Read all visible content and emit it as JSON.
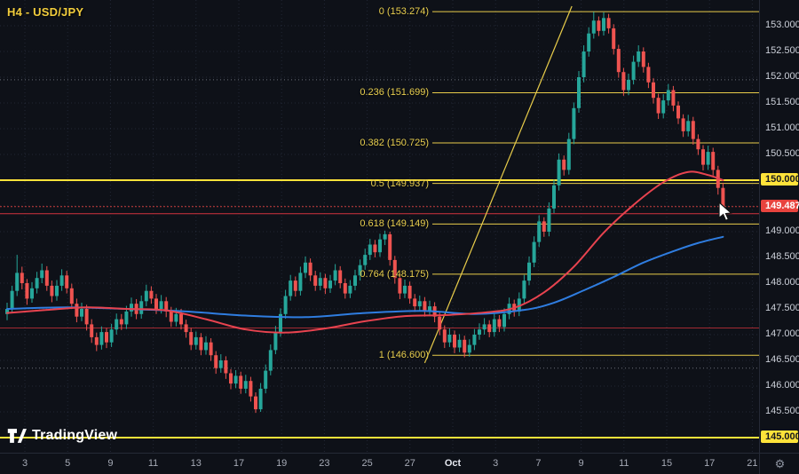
{
  "header": {
    "title": "H4 - USD/JPY"
  },
  "watermark": {
    "label": "TradingView"
  },
  "icons": {
    "settings": "⚙"
  },
  "chart_data": {
    "type": "candlestick",
    "symbol": "USD/JPY",
    "timeframe": "H4",
    "ylim": [
      144.71,
      153.5
    ],
    "grid_step": 0.5,
    "legend_position": "none",
    "colors": {
      "up": "#26a69a",
      "down": "#ef5350",
      "fib": "#e8cc4a",
      "level": "#ffe33a",
      "ma_red": "#e8434f",
      "ma_blue": "#2f7de0",
      "last": "#e8433e"
    },
    "x_labels": [
      {
        "text": "3"
      },
      {
        "text": "5"
      },
      {
        "text": "9"
      },
      {
        "text": "11"
      },
      {
        "text": "13"
      },
      {
        "text": "17"
      },
      {
        "text": "19"
      },
      {
        "text": "23"
      },
      {
        "text": "25"
      },
      {
        "text": "27"
      },
      {
        "text": "Oct",
        "bold": true
      },
      {
        "text": "3"
      },
      {
        "text": "7"
      },
      {
        "text": "9"
      },
      {
        "text": "11"
      },
      {
        "text": "15"
      },
      {
        "text": "17"
      },
      {
        "text": "21"
      }
    ],
    "y_labels": [
      {
        "text": "153.000",
        "price": 153.0
      },
      {
        "text": "152.500",
        "price": 152.5
      },
      {
        "text": "152.000",
        "price": 152.0
      },
      {
        "text": "151.500",
        "price": 151.5
      },
      {
        "text": "151.000",
        "price": 151.0
      },
      {
        "text": "150.500",
        "price": 150.5
      },
      {
        "text": "149.000",
        "price": 149.0
      },
      {
        "text": "148.500",
        "price": 148.5
      },
      {
        "text": "148.000",
        "price": 148.0
      },
      {
        "text": "147.500",
        "price": 147.5
      },
      {
        "text": "147.000",
        "price": 147.0
      },
      {
        "text": "146.500",
        "price": 146.5
      },
      {
        "text": "146.000",
        "price": 146.0
      },
      {
        "text": "145.500",
        "price": 145.5
      }
    ],
    "fib": {
      "levels": [
        {
          "label": "0 (153.274)",
          "price": 153.274
        },
        {
          "label": "0.236 (151.699)",
          "price": 151.699
        },
        {
          "label": "0.382 (150.725)",
          "price": 150.725
        },
        {
          "label": "0.5 (149.937)",
          "price": 149.937
        },
        {
          "label": "0.618 (149.149)",
          "price": 149.149
        },
        {
          "label": "0.764 (148.175)",
          "price": 148.175
        },
        {
          "label": "1 (146.600)",
          "price": 146.6
        }
      ]
    },
    "price_levels": [
      {
        "label": "150.000",
        "price": 150.0
      },
      {
        "label": "145.000",
        "price": 145.0
      }
    ],
    "support_lines": [
      {
        "price": 149.35,
        "color": "#d2323e"
      },
      {
        "price": 147.13,
        "color": "#a32a33"
      }
    ],
    "dotted_lines": [
      {
        "price": 151.95
      },
      {
        "price": 146.35
      }
    ],
    "last_price": {
      "label": "149.487",
      "price": 149.487
    },
    "trendline": {
      "from_index": 84,
      "from_price": 146.45,
      "to_index": 113.6,
      "to_price": 153.38
    },
    "ma_red": {
      "points": [
        [
          0,
          147.42
        ],
        [
          8,
          147.48
        ],
        [
          16,
          147.53
        ],
        [
          24,
          147.5
        ],
        [
          32,
          147.47
        ],
        [
          40,
          147.3
        ],
        [
          48,
          147.1
        ],
        [
          56,
          147.04
        ],
        [
          64,
          147.12
        ],
        [
          72,
          147.26
        ],
        [
          80,
          147.36
        ],
        [
          88,
          147.38
        ],
        [
          96,
          147.43
        ],
        [
          102,
          147.52
        ],
        [
          108,
          147.82
        ],
        [
          114,
          148.32
        ],
        [
          120,
          148.98
        ],
        [
          126,
          149.52
        ],
        [
          132,
          149.96
        ],
        [
          137,
          150.16
        ],
        [
          141,
          150.1
        ],
        [
          144,
          150.0
        ]
      ]
    },
    "ma_blue": {
      "points": [
        [
          0,
          147.5
        ],
        [
          12,
          147.53
        ],
        [
          24,
          147.5
        ],
        [
          36,
          147.45
        ],
        [
          48,
          147.37
        ],
        [
          60,
          147.34
        ],
        [
          72,
          147.42
        ],
        [
          84,
          147.46
        ],
        [
          94,
          147.4
        ],
        [
          104,
          147.48
        ],
        [
          110,
          147.62
        ],
        [
          116,
          147.86
        ],
        [
          122,
          148.12
        ],
        [
          128,
          148.4
        ],
        [
          134,
          148.62
        ],
        [
          139,
          148.78
        ],
        [
          144,
          148.9
        ]
      ]
    },
    "candles": [
      [
        147.4,
        147.62,
        147.28,
        147.5
      ],
      [
        147.5,
        147.95,
        147.42,
        147.85
      ],
      [
        147.85,
        148.55,
        147.75,
        148.2
      ],
      [
        148.2,
        148.32,
        147.88,
        148.0
      ],
      [
        148.0,
        148.08,
        147.58,
        147.7
      ],
      [
        147.7,
        148.02,
        147.62,
        147.9
      ],
      [
        147.9,
        148.22,
        147.8,
        148.1
      ],
      [
        148.1,
        148.38,
        148.0,
        148.25
      ],
      [
        148.25,
        148.33,
        147.85,
        147.95
      ],
      [
        147.95,
        148.05,
        147.63,
        147.75
      ],
      [
        147.75,
        148.06,
        147.66,
        147.95
      ],
      [
        147.95,
        148.27,
        147.85,
        148.15
      ],
      [
        148.15,
        148.24,
        147.8,
        147.9
      ],
      [
        147.9,
        147.99,
        147.5,
        147.6
      ],
      [
        147.6,
        147.7,
        147.24,
        147.35
      ],
      [
        147.35,
        147.62,
        147.26,
        147.5
      ],
      [
        147.5,
        147.58,
        147.08,
        147.2
      ],
      [
        147.2,
        147.3,
        146.84,
        146.95
      ],
      [
        146.95,
        147.04,
        146.68,
        146.8
      ],
      [
        146.8,
        147.16,
        146.71,
        147.05
      ],
      [
        147.05,
        147.13,
        146.74,
        146.85
      ],
      [
        146.85,
        147.21,
        146.76,
        147.1
      ],
      [
        147.1,
        147.41,
        147.0,
        147.3
      ],
      [
        147.3,
        147.4,
        147.09,
        147.2
      ],
      [
        147.2,
        147.56,
        147.11,
        147.45
      ],
      [
        147.45,
        147.72,
        147.35,
        147.6
      ],
      [
        147.6,
        147.69,
        147.3,
        147.4
      ],
      [
        147.4,
        147.76,
        147.31,
        147.65
      ],
      [
        147.65,
        147.97,
        147.55,
        147.85
      ],
      [
        147.85,
        147.94,
        147.6,
        147.7
      ],
      [
        147.7,
        147.79,
        147.4,
        147.5
      ],
      [
        147.5,
        147.77,
        147.41,
        147.65
      ],
      [
        147.65,
        147.73,
        147.34,
        147.45
      ],
      [
        147.45,
        147.54,
        147.15,
        147.25
      ],
      [
        147.25,
        147.52,
        147.16,
        147.4
      ],
      [
        147.4,
        147.5,
        147.1,
        147.2
      ],
      [
        147.2,
        147.29,
        146.94,
        147.05
      ],
      [
        147.05,
        147.13,
        146.7,
        146.8
      ],
      [
        146.8,
        147.06,
        146.71,
        146.95
      ],
      [
        146.95,
        147.03,
        146.6,
        146.7
      ],
      [
        146.7,
        146.97,
        146.61,
        146.85
      ],
      [
        146.85,
        146.93,
        146.49,
        146.6
      ],
      [
        146.6,
        146.68,
        146.24,
        146.35
      ],
      [
        146.35,
        146.62,
        146.26,
        146.5
      ],
      [
        146.5,
        146.58,
        146.14,
        146.25
      ],
      [
        146.25,
        146.33,
        145.94,
        146.05
      ],
      [
        146.05,
        146.31,
        145.96,
        146.2
      ],
      [
        146.2,
        146.28,
        145.85,
        145.95
      ],
      [
        145.95,
        146.22,
        145.86,
        146.1
      ],
      [
        146.1,
        146.18,
        145.7,
        145.8
      ],
      [
        145.8,
        145.88,
        145.48,
        145.55
      ],
      [
        145.55,
        146.06,
        145.5,
        145.95
      ],
      [
        145.95,
        146.42,
        145.86,
        146.3
      ],
      [
        146.3,
        146.81,
        146.21,
        146.7
      ],
      [
        146.7,
        147.17,
        146.62,
        147.05
      ],
      [
        147.05,
        147.51,
        146.96,
        147.4
      ],
      [
        147.4,
        147.87,
        147.31,
        147.75
      ],
      [
        147.75,
        148.16,
        147.66,
        148.05
      ],
      [
        148.05,
        148.13,
        147.74,
        147.85
      ],
      [
        147.85,
        148.32,
        147.76,
        148.2
      ],
      [
        148.2,
        148.52,
        148.1,
        148.4
      ],
      [
        148.4,
        148.48,
        148.04,
        148.15
      ],
      [
        148.15,
        148.24,
        147.85,
        147.95
      ],
      [
        147.95,
        148.21,
        147.86,
        148.1
      ],
      [
        148.1,
        148.18,
        147.79,
        147.9
      ],
      [
        147.9,
        148.16,
        147.81,
        148.05
      ],
      [
        148.05,
        148.37,
        147.96,
        148.25
      ],
      [
        148.25,
        148.33,
        147.9,
        148.0
      ],
      [
        148.0,
        148.09,
        147.7,
        147.8
      ],
      [
        147.8,
        148.06,
        147.71,
        147.95
      ],
      [
        147.95,
        148.26,
        147.86,
        148.15
      ],
      [
        148.15,
        148.46,
        148.05,
        148.35
      ],
      [
        148.35,
        148.67,
        148.26,
        148.55
      ],
      [
        148.55,
        148.86,
        148.45,
        148.75
      ],
      [
        148.75,
        148.84,
        148.5,
        148.6
      ],
      [
        148.6,
        148.96,
        148.51,
        148.85
      ],
      [
        148.85,
        149.02,
        148.74,
        148.95
      ],
      [
        148.95,
        149.0,
        148.34,
        148.45
      ],
      [
        148.45,
        148.53,
        147.99,
        148.1
      ],
      [
        148.1,
        148.18,
        147.69,
        147.8
      ],
      [
        147.8,
        148.07,
        147.71,
        147.95
      ],
      [
        147.95,
        148.03,
        147.6,
        147.7
      ],
      [
        147.7,
        147.79,
        147.44,
        147.55
      ],
      [
        147.55,
        147.76,
        147.45,
        147.65
      ],
      [
        147.65,
        147.73,
        147.35,
        147.45
      ],
      [
        147.45,
        147.66,
        147.36,
        147.55
      ],
      [
        147.55,
        147.63,
        147.24,
        147.35
      ],
      [
        147.35,
        147.43,
        146.99,
        147.1
      ],
      [
        147.1,
        147.18,
        146.74,
        146.85
      ],
      [
        146.85,
        147.12,
        146.76,
        147.0
      ],
      [
        147.0,
        147.08,
        146.64,
        146.75
      ],
      [
        146.75,
        147.01,
        146.66,
        146.9
      ],
      [
        146.9,
        146.98,
        146.56,
        146.65
      ],
      [
        146.65,
        146.91,
        146.57,
        146.8
      ],
      [
        146.8,
        147.11,
        146.7,
        147.0
      ],
      [
        147.0,
        147.22,
        146.9,
        147.1
      ],
      [
        147.1,
        147.32,
        147.0,
        147.2
      ],
      [
        147.2,
        147.28,
        146.95,
        147.05
      ],
      [
        147.05,
        147.41,
        146.96,
        147.3
      ],
      [
        147.3,
        147.38,
        147.05,
        147.15
      ],
      [
        147.15,
        147.51,
        147.06,
        147.4
      ],
      [
        147.4,
        147.72,
        147.3,
        147.6
      ],
      [
        147.6,
        147.68,
        147.35,
        147.45
      ],
      [
        147.45,
        147.82,
        147.36,
        147.7
      ],
      [
        147.7,
        148.16,
        147.61,
        148.05
      ],
      [
        148.05,
        148.52,
        147.96,
        148.4
      ],
      [
        148.4,
        148.91,
        148.31,
        148.8
      ],
      [
        148.8,
        149.32,
        148.7,
        149.2
      ],
      [
        149.2,
        149.28,
        148.9,
        149.0
      ],
      [
        149.0,
        149.57,
        148.91,
        149.45
      ],
      [
        149.45,
        150.01,
        149.36,
        149.9
      ],
      [
        149.9,
        150.52,
        149.8,
        150.4
      ],
      [
        150.4,
        150.48,
        150.09,
        150.2
      ],
      [
        150.2,
        150.92,
        150.11,
        150.8
      ],
      [
        150.8,
        151.51,
        150.7,
        151.4
      ],
      [
        151.4,
        152.12,
        151.31,
        152.0
      ],
      [
        152.0,
        152.62,
        151.9,
        152.5
      ],
      [
        152.5,
        152.97,
        152.4,
        152.85
      ],
      [
        152.85,
        153.27,
        152.75,
        153.1
      ],
      [
        153.1,
        153.18,
        152.8,
        152.9
      ],
      [
        152.9,
        153.26,
        152.81,
        153.15
      ],
      [
        153.15,
        153.23,
        152.85,
        152.95
      ],
      [
        152.95,
        153.03,
        152.44,
        152.55
      ],
      [
        152.55,
        152.63,
        151.99,
        152.1
      ],
      [
        152.1,
        152.18,
        151.64,
        151.75
      ],
      [
        151.75,
        152.07,
        151.65,
        151.95
      ],
      [
        151.95,
        152.42,
        151.86,
        152.3
      ],
      [
        152.3,
        152.62,
        152.2,
        152.5
      ],
      [
        152.5,
        152.58,
        152.09,
        152.2
      ],
      [
        152.2,
        152.28,
        151.79,
        151.9
      ],
      [
        151.9,
        151.98,
        151.49,
        151.6
      ],
      [
        151.6,
        151.68,
        151.19,
        151.3
      ],
      [
        151.3,
        151.67,
        151.2,
        151.55
      ],
      [
        151.55,
        151.87,
        151.45,
        151.75
      ],
      [
        151.75,
        151.83,
        151.34,
        151.45
      ],
      [
        151.45,
        151.53,
        151.09,
        151.2
      ],
      [
        151.2,
        151.28,
        150.84,
        150.95
      ],
      [
        150.95,
        151.27,
        150.85,
        151.15
      ],
      [
        151.15,
        151.23,
        150.69,
        150.8
      ],
      [
        150.8,
        150.89,
        150.49,
        150.6
      ],
      [
        150.6,
        150.68,
        150.19,
        150.3
      ],
      [
        150.3,
        150.67,
        150.2,
        150.55
      ],
      [
        150.55,
        150.63,
        150.09,
        150.2
      ],
      [
        150.2,
        150.28,
        149.72,
        149.85
      ],
      [
        149.85,
        149.95,
        149.31,
        149.49
      ]
    ]
  }
}
